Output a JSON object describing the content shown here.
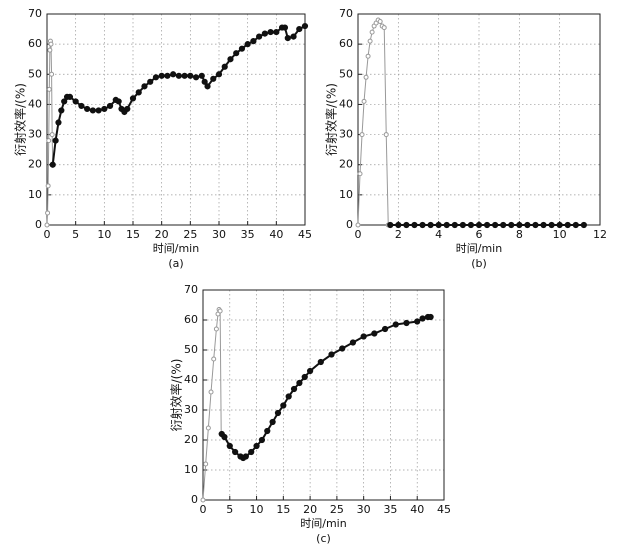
{
  "chart_data": [
    {
      "type": "line",
      "xlabel": "时间/min",
      "ylabel": "衍射效率/(%)",
      "caption": "(a)",
      "xlim": [
        0,
        45
      ],
      "xticks": [
        0,
        5,
        10,
        15,
        20,
        25,
        30,
        35,
        40,
        45
      ],
      "ylim": [
        0,
        70
      ],
      "yticks": [
        0,
        10,
        20,
        30,
        40,
        50,
        60,
        70
      ],
      "grid": true,
      "series": [
        {
          "color": "#999999",
          "x": [
            0,
            0.1,
            0.2,
            0.3,
            0.4,
            0.5,
            0.6,
            0.7,
            0.8,
            0.9,
            1.0
          ],
          "values": [
            0,
            4,
            13,
            28,
            45,
            58,
            61,
            60,
            50,
            30,
            20
          ]
        },
        {
          "color": "#111111",
          "x": [
            1,
            1.5,
            2,
            2.5,
            3,
            3.5,
            4,
            5,
            6,
            7,
            8,
            9,
            10,
            11,
            12,
            12.5,
            13,
            13.5,
            14,
            15,
            16,
            17,
            18,
            19,
            20,
            21,
            22,
            23,
            24,
            25,
            26,
            27,
            27.5,
            28,
            29,
            30,
            31,
            32,
            33,
            34,
            35,
            36,
            37,
            38,
            39,
            40,
            41,
            41.5,
            42,
            43,
            44,
            45
          ],
          "values": [
            20,
            28,
            34,
            38,
            41,
            42.5,
            42.5,
            41,
            39.5,
            38.5,
            38,
            38,
            38.5,
            39.5,
            41.5,
            41,
            38.5,
            37.5,
            38.5,
            42,
            44,
            46,
            47.5,
            49,
            49.5,
            49.5,
            50,
            49.5,
            49.5,
            49.5,
            49,
            49.5,
            47.5,
            46,
            48.5,
            50,
            52.5,
            55,
            57,
            58.5,
            60,
            61,
            62.5,
            63.5,
            64,
            64,
            65.5,
            65.5,
            62,
            62.5,
            65,
            66
          ]
        }
      ]
    },
    {
      "type": "line",
      "xlabel": "时间/min",
      "ylabel": "衍射效率/(%)",
      "caption": "(b)",
      "xlim": [
        0,
        12
      ],
      "xticks": [
        0,
        2,
        4,
        6,
        8,
        10,
        12
      ],
      "ylim": [
        0,
        70
      ],
      "yticks": [
        0,
        10,
        20,
        30,
        40,
        50,
        60,
        70
      ],
      "grid": true,
      "series": [
        {
          "color": "#999999",
          "x": [
            0,
            0.1,
            0.2,
            0.3,
            0.4,
            0.5,
            0.6,
            0.7,
            0.8,
            0.9,
            1.0,
            1.1,
            1.2,
            1.3,
            1.4,
            1.5
          ],
          "values": [
            0,
            17,
            30,
            41,
            49,
            56,
            61,
            64,
            66,
            67,
            68,
            67.5,
            66,
            65.5,
            30,
            0
          ]
        },
        {
          "color": "#111111",
          "x": [
            1.6,
            2,
            2.4,
            2.8,
            3.2,
            3.6,
            4,
            4.4,
            4.8,
            5.2,
            5.6,
            6,
            6.4,
            6.8,
            7.2,
            7.6,
            8,
            8.4,
            8.8,
            9.2,
            9.6,
            10,
            10.4,
            10.8,
            11.2
          ],
          "values": [
            0,
            0,
            0,
            0,
            0,
            0,
            0,
            0,
            0,
            0,
            0,
            0,
            0,
            0,
            0,
            0,
            0,
            0,
            0,
            0,
            0,
            0,
            0,
            0,
            0
          ]
        }
      ]
    },
    {
      "type": "line",
      "xlabel": "时间/min",
      "ylabel": "衍射效率/(%)",
      "caption": "(c)",
      "xlim": [
        0,
        45
      ],
      "xticks": [
        0,
        5,
        10,
        15,
        20,
        25,
        30,
        35,
        40,
        45
      ],
      "ylim": [
        0,
        70
      ],
      "yticks": [
        0,
        10,
        20,
        30,
        40,
        50,
        60,
        70
      ],
      "grid": true,
      "series": [
        {
          "color": "#999999",
          "x": [
            0,
            0.5,
            1,
            1.5,
            2,
            2.5,
            2.8,
            3,
            3.2,
            3.4
          ],
          "values": [
            0,
            12,
            24,
            36,
            47,
            57,
            62,
            63.5,
            63,
            22
          ]
        },
        {
          "color": "#111111",
          "x": [
            3.5,
            4,
            5,
            6,
            7,
            7.5,
            8,
            9,
            10,
            11,
            12,
            13,
            14,
            15,
            16,
            17,
            18,
            19,
            20,
            22,
            24,
            26,
            28,
            30,
            32,
            34,
            36,
            38,
            40,
            41,
            42,
            42.5
          ],
          "values": [
            22,
            21,
            18,
            16,
            14.5,
            14,
            14.5,
            16,
            18,
            20,
            23,
            26,
            29,
            31.5,
            34.5,
            37,
            39,
            41,
            43,
            46,
            48.5,
            50.5,
            52.5,
            54.5,
            55.5,
            57,
            58.5,
            59,
            59.5,
            60.5,
            61,
            61
          ]
        }
      ]
    }
  ]
}
